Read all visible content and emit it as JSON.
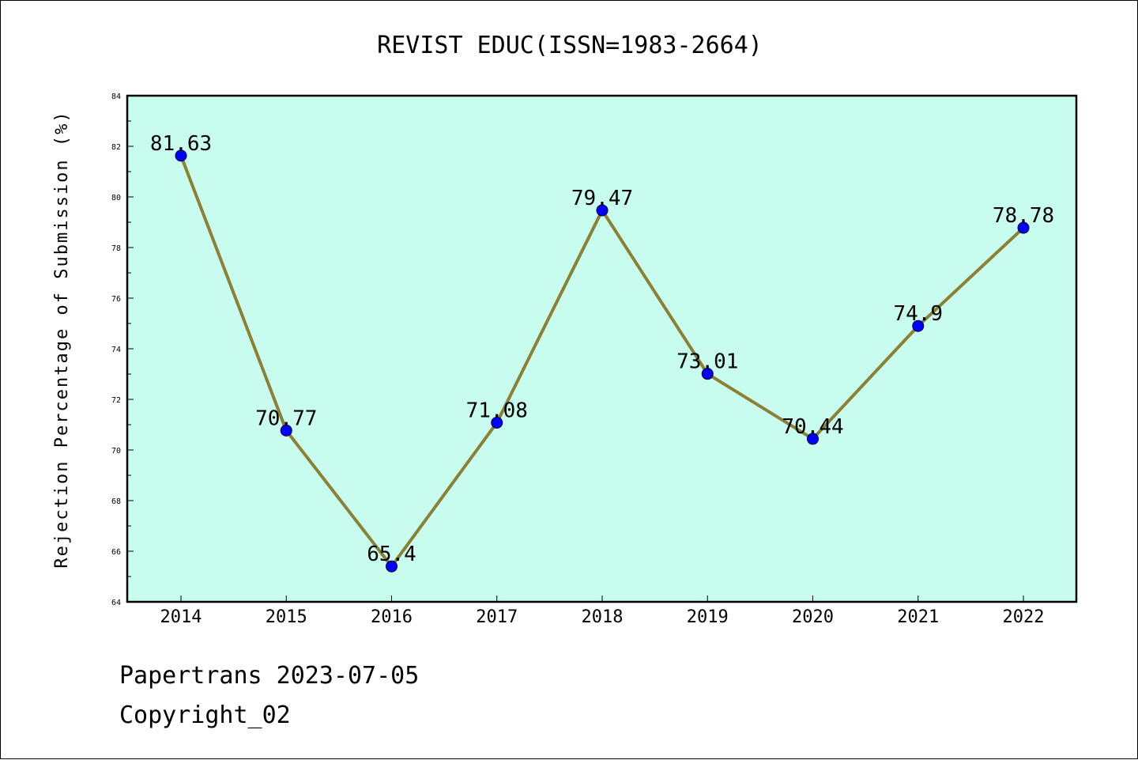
{
  "chart_data": {
    "type": "line",
    "title": "REVIST EDUC(ISSN=1983-2664)",
    "xlabel": "",
    "ylabel": "Rejection Percentage of Submission (%)",
    "categories": [
      "2014",
      "2015",
      "2016",
      "2017",
      "2018",
      "2019",
      "2020",
      "2021",
      "2022"
    ],
    "values": [
      81.63,
      70.77,
      65.4,
      71.08,
      79.47,
      73.01,
      70.44,
      74.9,
      78.78
    ],
    "data_labels": [
      "81.63",
      "70.77",
      "65.4",
      "71.08",
      "79.47",
      "73.01",
      "70.44",
      "74.9",
      "78.78"
    ],
    "ylim": [
      64,
      84
    ],
    "yticks": [
      64,
      66,
      68,
      70,
      72,
      74,
      76,
      78,
      80,
      82,
      84
    ],
    "grid": false,
    "legend": "none",
    "colors": {
      "plot_background": "#c8fcee",
      "line": "#8b8034",
      "marker": "#0000ff",
      "axis": "#000000"
    }
  },
  "footer": {
    "line1": "Papertrans 2023-07-05",
    "line2": "Copyright_02"
  }
}
